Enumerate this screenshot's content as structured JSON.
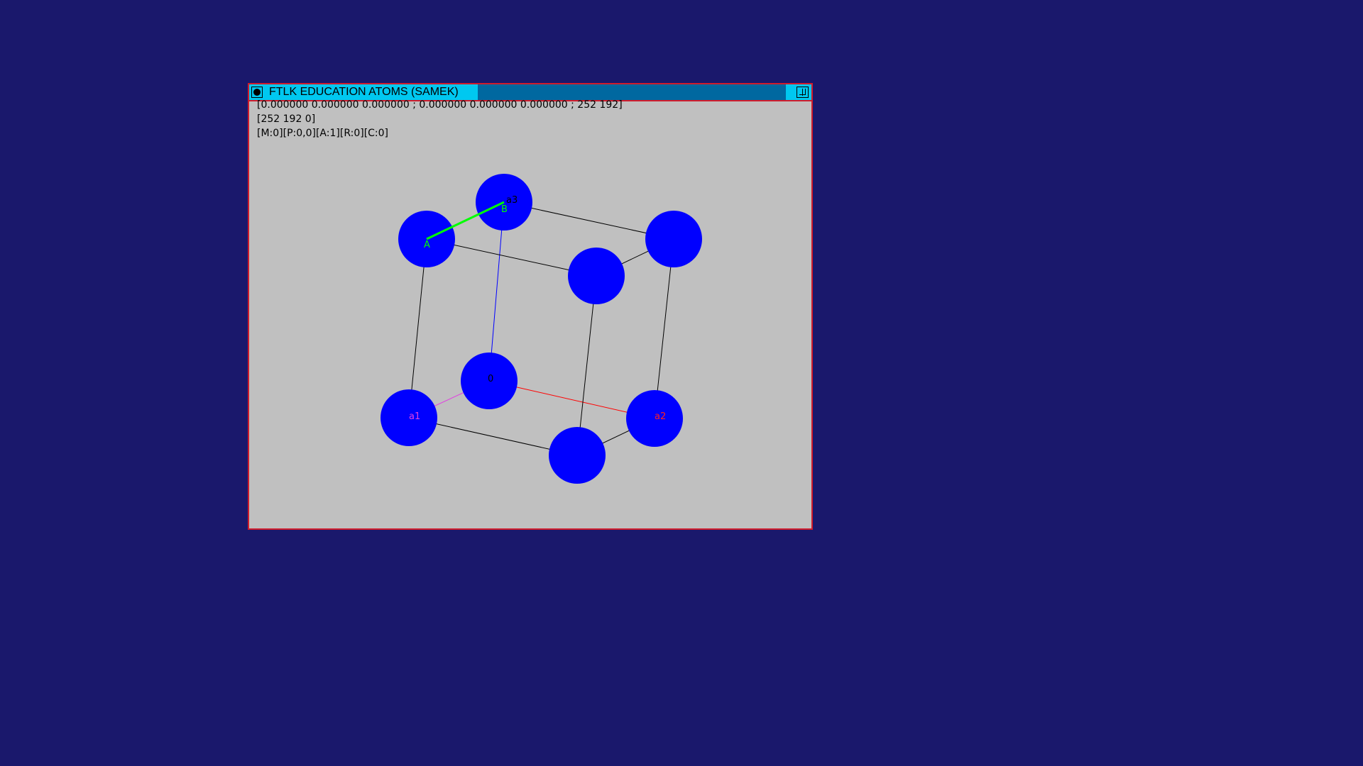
{
  "window": {
    "title": "FTLK EDUCATION ATOMS (SAMEK)",
    "info_line1": "[0.000000 0.000000 0.000000 ; 0.000000 0.000000 0.000000 ; 252 192]",
    "info_line2": "[252 192 0]",
    "info_line3": "[M:0][P:0,0][A:1][R:0][C:0]"
  },
  "scene": {
    "atom_color": "#0000ff",
    "edge_color": "#000000",
    "axis_a1_color": "#e040e0",
    "axis_a2_color": "#ff0000",
    "axis_a3_color": "#0000ff",
    "selection_color": "#00ff00",
    "labels": {
      "origin": "0",
      "a1": "a1",
      "a2": "a2",
      "a3": "a3",
      "A": "A",
      "B": "B"
    }
  },
  "colors": {
    "desktop": "#1a186c",
    "window_bg": "#c0c0c0",
    "window_border": "#d01c2c",
    "title_light": "#00c8f0",
    "title_dark": "#0068a0"
  }
}
